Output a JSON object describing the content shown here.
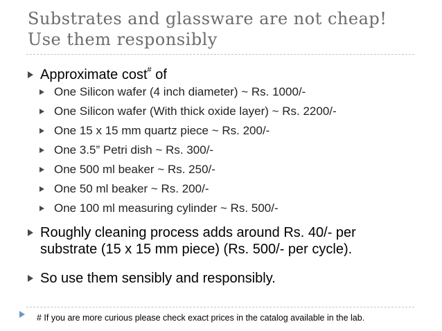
{
  "title_line1": "Substrates and glassware are not cheap!",
  "title_line2": "Use them responsibly",
  "intro": {
    "text": "Approximate cost",
    "sup": "#",
    "tail": " of"
  },
  "items": [
    "One Silicon wafer (4 inch diameter) ~ Rs. 1000/-",
    "One Silicon wafer (With thick oxide layer) ~ Rs. 2200/-",
    "One 15 x 15 mm quartz piece ~ Rs. 200/-",
    "One 3.5” Petri dish ~ Rs. 300/-",
    "One 500 ml beaker ~ Rs. 250/-",
    "One 50 ml beaker ~ Rs. 200/-",
    "One 100 ml measuring cylinder ~ Rs. 500/-"
  ],
  "cleaning_line1": "Roughly cleaning process adds around Rs. 40/- per",
  "cleaning_line2": "substrate (15 x 15 mm piece) (Rs. 500/- per cycle).",
  "closing": "So use them sensibly and responsibly.",
  "footnote": "# If you are more curious please check exact prices in the catalog available in the lab."
}
